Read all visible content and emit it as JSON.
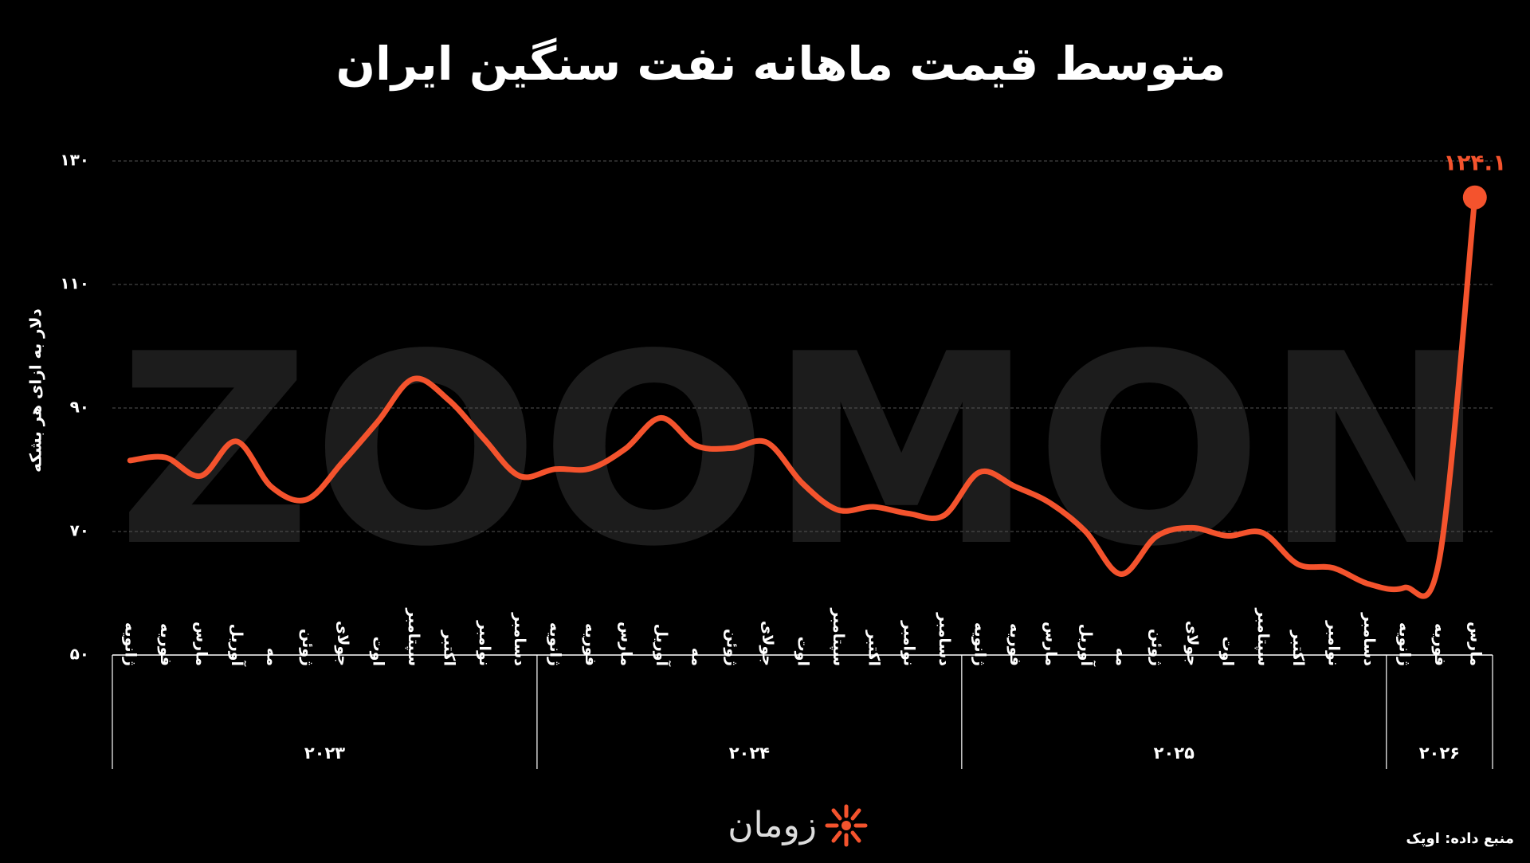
{
  "chart_data": {
    "type": "line",
    "title": "متوسط قیمت ماهانه نفت سنگین ایران",
    "y_label": "دلار به ازای هر بشکه",
    "watermark": "ZOOMON",
    "source": "منبع داده: اوپک",
    "logo": "زومان",
    "categories": [
      "ژانویه",
      "فوریه",
      "مارس",
      "آوریل",
      "مه",
      "ژوئن",
      "جولای",
      "اوت",
      "سپتامبر",
      "اکتبر",
      "نوامبر",
      "دسامبر",
      "ژانویه",
      "فوریه",
      "مارس",
      "آوریل",
      "مه",
      "ژوئن",
      "جولای",
      "اوت",
      "سپتامبر",
      "اکتبر",
      "نوامبر",
      "دسامبر",
      "ژانویه",
      "فوریه",
      "مارس",
      "آوریل",
      "مه",
      "ژوئن",
      "جولای",
      "اوت",
      "سپتامبر",
      "اکتبر",
      "نوامبر",
      "دسامبر",
      "ژانویه",
      "فوریه",
      "مارس"
    ],
    "year_groups": [
      "۲۰۲۳",
      "۲۰۲۴",
      "۲۰۲۵",
      "۲۰۲۶"
    ],
    "series": [
      {
        "name": "نفت سنگین ایران",
        "color": "#f4532d",
        "values": [
          81.5,
          82,
          79,
          84.6,
          77.2,
          75.2,
          81.2,
          87.8,
          94.7,
          91.3,
          85,
          79,
          80.1,
          80.2,
          83.4,
          88.4,
          83.9,
          83.5,
          84.4,
          77.8,
          73.5,
          74,
          72.9,
          72.6,
          79.6,
          77.3,
          74.6,
          70,
          63.1,
          69.2,
          70.6,
          69.3,
          69.8,
          64.7,
          64.1,
          61.5,
          60.9,
          65.6,
          124.1
        ],
        "value_labels": [
          null,
          null,
          null,
          null,
          null,
          null,
          null,
          null,
          null,
          null,
          null,
          null,
          null,
          null,
          null,
          null,
          null,
          null,
          null,
          null,
          null,
          null,
          null,
          null,
          null,
          null,
          null,
          null,
          null,
          null,
          null,
          null,
          null,
          null,
          null,
          null,
          null,
          null,
          "۱۲۴.۱"
        ]
      }
    ],
    "ylim": [
      50,
      130
    ],
    "yticks": [
      {
        "value": 50,
        "label": "۵۰"
      },
      {
        "value": 70,
        "label": "۷۰"
      },
      {
        "value": 90,
        "label": "۹۰"
      },
      {
        "value": 110,
        "label": "۱۱۰"
      },
      {
        "value": 130,
        "label": "۱۳۰"
      }
    ],
    "grid": true
  }
}
